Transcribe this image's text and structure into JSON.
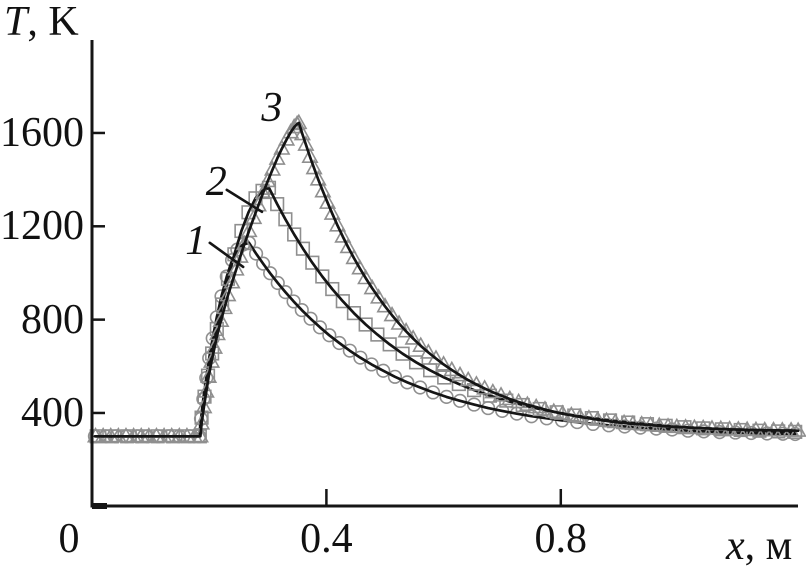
{
  "chart_data": {
    "type": "line",
    "title": "",
    "ylabel": "T, K",
    "xlabel": "x, м",
    "ylabel_parts": {
      "symbol": "T",
      "rest": ", K"
    },
    "xlabel_parts": {
      "symbol": "x",
      "rest": ", м"
    },
    "xlim": [
      0,
      1.205
    ],
    "ylim": [
      0,
      2000
    ],
    "grid": false,
    "legend": "none",
    "x_ticks": {
      "values": [
        0,
        0.4,
        0.8
      ],
      "labels": [
        "0",
        "0.4",
        "0.8"
      ]
    },
    "y_ticks": {
      "values": [
        400,
        800,
        1200,
        1600
      ],
      "labels": [
        "400",
        "800",
        "1200",
        "1600"
      ]
    },
    "colors": {
      "line": "#151515",
      "marker": "#8f8f8f",
      "text": "#111111",
      "background": "#ffffff"
    },
    "series": [
      {
        "name": "1",
        "marker": "circle",
        "baseline_T": 300,
        "peak": {
          "x": 0.27,
          "T": 1130
        },
        "points": [
          [
            0.005,
            300
          ],
          [
            0.023,
            300
          ],
          [
            0.041,
            300
          ],
          [
            0.059,
            300
          ],
          [
            0.077,
            300
          ],
          [
            0.095,
            300
          ],
          [
            0.113,
            300
          ],
          [
            0.131,
            300
          ],
          [
            0.149,
            300
          ],
          [
            0.167,
            300
          ],
          [
            0.183,
            300
          ],
          [
            0.186,
            375
          ],
          [
            0.19,
            460
          ],
          [
            0.195,
            550
          ],
          [
            0.2,
            635
          ],
          [
            0.206,
            720
          ],
          [
            0.213,
            810
          ],
          [
            0.221,
            900
          ],
          [
            0.23,
            985
          ],
          [
            0.239,
            1055
          ],
          [
            0.248,
            1100
          ],
          [
            0.258,
            1122
          ],
          [
            0.268,
            1129
          ],
          [
            0.28,
            1083
          ],
          [
            0.292,
            1040
          ],
          [
            0.304,
            999
          ],
          [
            0.317,
            957
          ],
          [
            0.33,
            918
          ],
          [
            0.344,
            878
          ],
          [
            0.358,
            841
          ],
          [
            0.373,
            804
          ],
          [
            0.389,
            767
          ],
          [
            0.405,
            733
          ],
          [
            0.422,
            700
          ],
          [
            0.44,
            667
          ],
          [
            0.458,
            637
          ],
          [
            0.477,
            608
          ],
          [
            0.497,
            581
          ],
          [
            0.517,
            555
          ],
          [
            0.538,
            531
          ],
          [
            0.56,
            509
          ],
          [
            0.582,
            488
          ],
          [
            0.605,
            469
          ],
          [
            0.628,
            452
          ],
          [
            0.652,
            436
          ],
          [
            0.676,
            421
          ],
          [
            0.7,
            409
          ],
          [
            0.725,
            397
          ],
          [
            0.75,
            386
          ],
          [
            0.776,
            377
          ],
          [
            0.802,
            368
          ],
          [
            0.828,
            361
          ],
          [
            0.855,
            353
          ],
          [
            0.882,
            347
          ],
          [
            0.909,
            342
          ],
          [
            0.936,
            337
          ],
          [
            0.963,
            333
          ],
          [
            0.99,
            329
          ],
          [
            1.017,
            324
          ],
          [
            1.044,
            321
          ],
          [
            1.071,
            318
          ],
          [
            1.098,
            316
          ],
          [
            1.125,
            314
          ],
          [
            1.152,
            312
          ],
          [
            1.179,
            311
          ],
          [
            1.2,
            310
          ]
        ]
      },
      {
        "name": "2",
        "marker": "square",
        "baseline_T": 300,
        "peak": {
          "x": 0.3,
          "T": 1365
        },
        "points": [
          [
            0.008,
            300
          ],
          [
            0.034,
            300
          ],
          [
            0.06,
            300
          ],
          [
            0.086,
            300
          ],
          [
            0.112,
            300
          ],
          [
            0.138,
            300
          ],
          [
            0.164,
            300
          ],
          [
            0.184,
            300
          ],
          [
            0.187,
            380
          ],
          [
            0.192,
            470
          ],
          [
            0.198,
            560
          ],
          [
            0.205,
            655
          ],
          [
            0.213,
            760
          ],
          [
            0.222,
            865
          ],
          [
            0.232,
            975
          ],
          [
            0.243,
            1080
          ],
          [
            0.255,
            1180
          ],
          [
            0.267,
            1260
          ],
          [
            0.279,
            1320
          ],
          [
            0.291,
            1352
          ],
          [
            0.302,
            1365
          ],
          [
            0.316,
            1295
          ],
          [
            0.33,
            1230
          ],
          [
            0.345,
            1165
          ],
          [
            0.36,
            1104
          ],
          [
            0.376,
            1044
          ],
          [
            0.393,
            985
          ],
          [
            0.41,
            931
          ],
          [
            0.428,
            879
          ],
          [
            0.447,
            828
          ],
          [
            0.467,
            779
          ],
          [
            0.487,
            736
          ],
          [
            0.508,
            694
          ],
          [
            0.53,
            654
          ],
          [
            0.553,
            617
          ],
          [
            0.577,
            583
          ],
          [
            0.601,
            552
          ],
          [
            0.626,
            524
          ],
          [
            0.652,
            498
          ],
          [
            0.679,
            474
          ],
          [
            0.707,
            453
          ],
          [
            0.735,
            434
          ],
          [
            0.764,
            417
          ],
          [
            0.793,
            403
          ],
          [
            0.823,
            389
          ],
          [
            0.853,
            378
          ],
          [
            0.884,
            368
          ],
          [
            0.915,
            359
          ],
          [
            0.947,
            352
          ],
          [
            0.979,
            345
          ],
          [
            1.011,
            339
          ],
          [
            1.043,
            334
          ],
          [
            1.075,
            330
          ],
          [
            1.107,
            327
          ],
          [
            1.139,
            324
          ],
          [
            1.171,
            321
          ],
          [
            1.2,
            319
          ]
        ]
      },
      {
        "name": "3",
        "marker": "triangle",
        "baseline_T": 300,
        "peak": {
          "x": 0.355,
          "T": 1643
        },
        "points": [
          [
            0.006,
            300
          ],
          [
            0.019,
            300
          ],
          [
            0.032,
            300
          ],
          [
            0.045,
            300
          ],
          [
            0.058,
            300
          ],
          [
            0.071,
            300
          ],
          [
            0.084,
            300
          ],
          [
            0.097,
            300
          ],
          [
            0.11,
            300
          ],
          [
            0.123,
            300
          ],
          [
            0.136,
            300
          ],
          [
            0.149,
            300
          ],
          [
            0.162,
            300
          ],
          [
            0.175,
            300
          ],
          [
            0.185,
            300
          ],
          [
            0.187,
            355
          ],
          [
            0.191,
            425
          ],
          [
            0.195,
            492
          ],
          [
            0.199,
            555
          ],
          [
            0.204,
            620
          ],
          [
            0.209,
            680
          ],
          [
            0.214,
            738
          ],
          [
            0.22,
            795
          ],
          [
            0.226,
            850
          ],
          [
            0.232,
            905
          ],
          [
            0.239,
            960
          ],
          [
            0.246,
            1015
          ],
          [
            0.253,
            1070
          ],
          [
            0.26,
            1124
          ],
          [
            0.268,
            1180
          ],
          [
            0.276,
            1236
          ],
          [
            0.284,
            1290
          ],
          [
            0.292,
            1343
          ],
          [
            0.3,
            1394
          ],
          [
            0.308,
            1443
          ],
          [
            0.316,
            1490
          ],
          [
            0.324,
            1533
          ],
          [
            0.332,
            1572
          ],
          [
            0.339,
            1603
          ],
          [
            0.345,
            1625
          ],
          [
            0.35,
            1638
          ],
          [
            0.353,
            1643
          ],
          [
            0.359,
            1595
          ],
          [
            0.365,
            1550
          ],
          [
            0.372,
            1498
          ],
          [
            0.379,
            1449
          ],
          [
            0.386,
            1401
          ],
          [
            0.394,
            1350
          ],
          [
            0.402,
            1301
          ],
          [
            0.41,
            1254
          ],
          [
            0.419,
            1204
          ],
          [
            0.428,
            1156
          ],
          [
            0.437,
            1111
          ],
          [
            0.447,
            1064
          ],
          [
            0.457,
            1020
          ],
          [
            0.467,
            978
          ],
          [
            0.478,
            935
          ],
          [
            0.489,
            895
          ],
          [
            0.5,
            857
          ],
          [
            0.512,
            819
          ],
          [
            0.524,
            783
          ],
          [
            0.536,
            750
          ],
          [
            0.548,
            719
          ],
          [
            0.561,
            688
          ],
          [
            0.574,
            659
          ],
          [
            0.587,
            633
          ],
          [
            0.6,
            608
          ],
          [
            0.614,
            584
          ],
          [
            0.628,
            562
          ],
          [
            0.642,
            541
          ],
          [
            0.656,
            522
          ],
          [
            0.67,
            505
          ],
          [
            0.684,
            489
          ],
          [
            0.698,
            475
          ],
          [
            0.713,
            460
          ],
          [
            0.728,
            447
          ],
          [
            0.743,
            435
          ],
          [
            0.758,
            425
          ],
          [
            0.773,
            415
          ],
          [
            0.788,
            405
          ],
          [
            0.803,
            397
          ],
          [
            0.818,
            390
          ],
          [
            0.833,
            383
          ],
          [
            0.848,
            377
          ],
          [
            0.863,
            371
          ],
          [
            0.878,
            366
          ],
          [
            0.893,
            361
          ],
          [
            0.908,
            357
          ],
          [
            0.923,
            353
          ],
          [
            0.938,
            351
          ],
          [
            0.953,
            348
          ],
          [
            0.968,
            345
          ],
          [
            0.983,
            342
          ],
          [
            0.998,
            340
          ],
          [
            1.013,
            338
          ],
          [
            1.028,
            336
          ],
          [
            1.043,
            335
          ],
          [
            1.058,
            333
          ],
          [
            1.073,
            332
          ],
          [
            1.088,
            330
          ],
          [
            1.103,
            329
          ],
          [
            1.118,
            328
          ],
          [
            1.133,
            327
          ],
          [
            1.148,
            326
          ],
          [
            1.163,
            326
          ],
          [
            1.178,
            325
          ],
          [
            1.193,
            325
          ],
          [
            1.205,
            324
          ]
        ]
      }
    ],
    "annotations": [
      {
        "label": "1",
        "x": 0.177,
        "T": 1137,
        "leader": {
          "x1": 0.201,
          "T1": 1129,
          "x2": 0.258,
          "T2": 1026
        }
      },
      {
        "label": "2",
        "x": 0.212,
        "T": 1390,
        "leader": {
          "x1": 0.23,
          "T1": 1356,
          "x2": 0.29,
          "T2": 1262
        }
      },
      {
        "label": "3",
        "x": 0.307,
        "T": 1707,
        "leader": null
      }
    ]
  }
}
